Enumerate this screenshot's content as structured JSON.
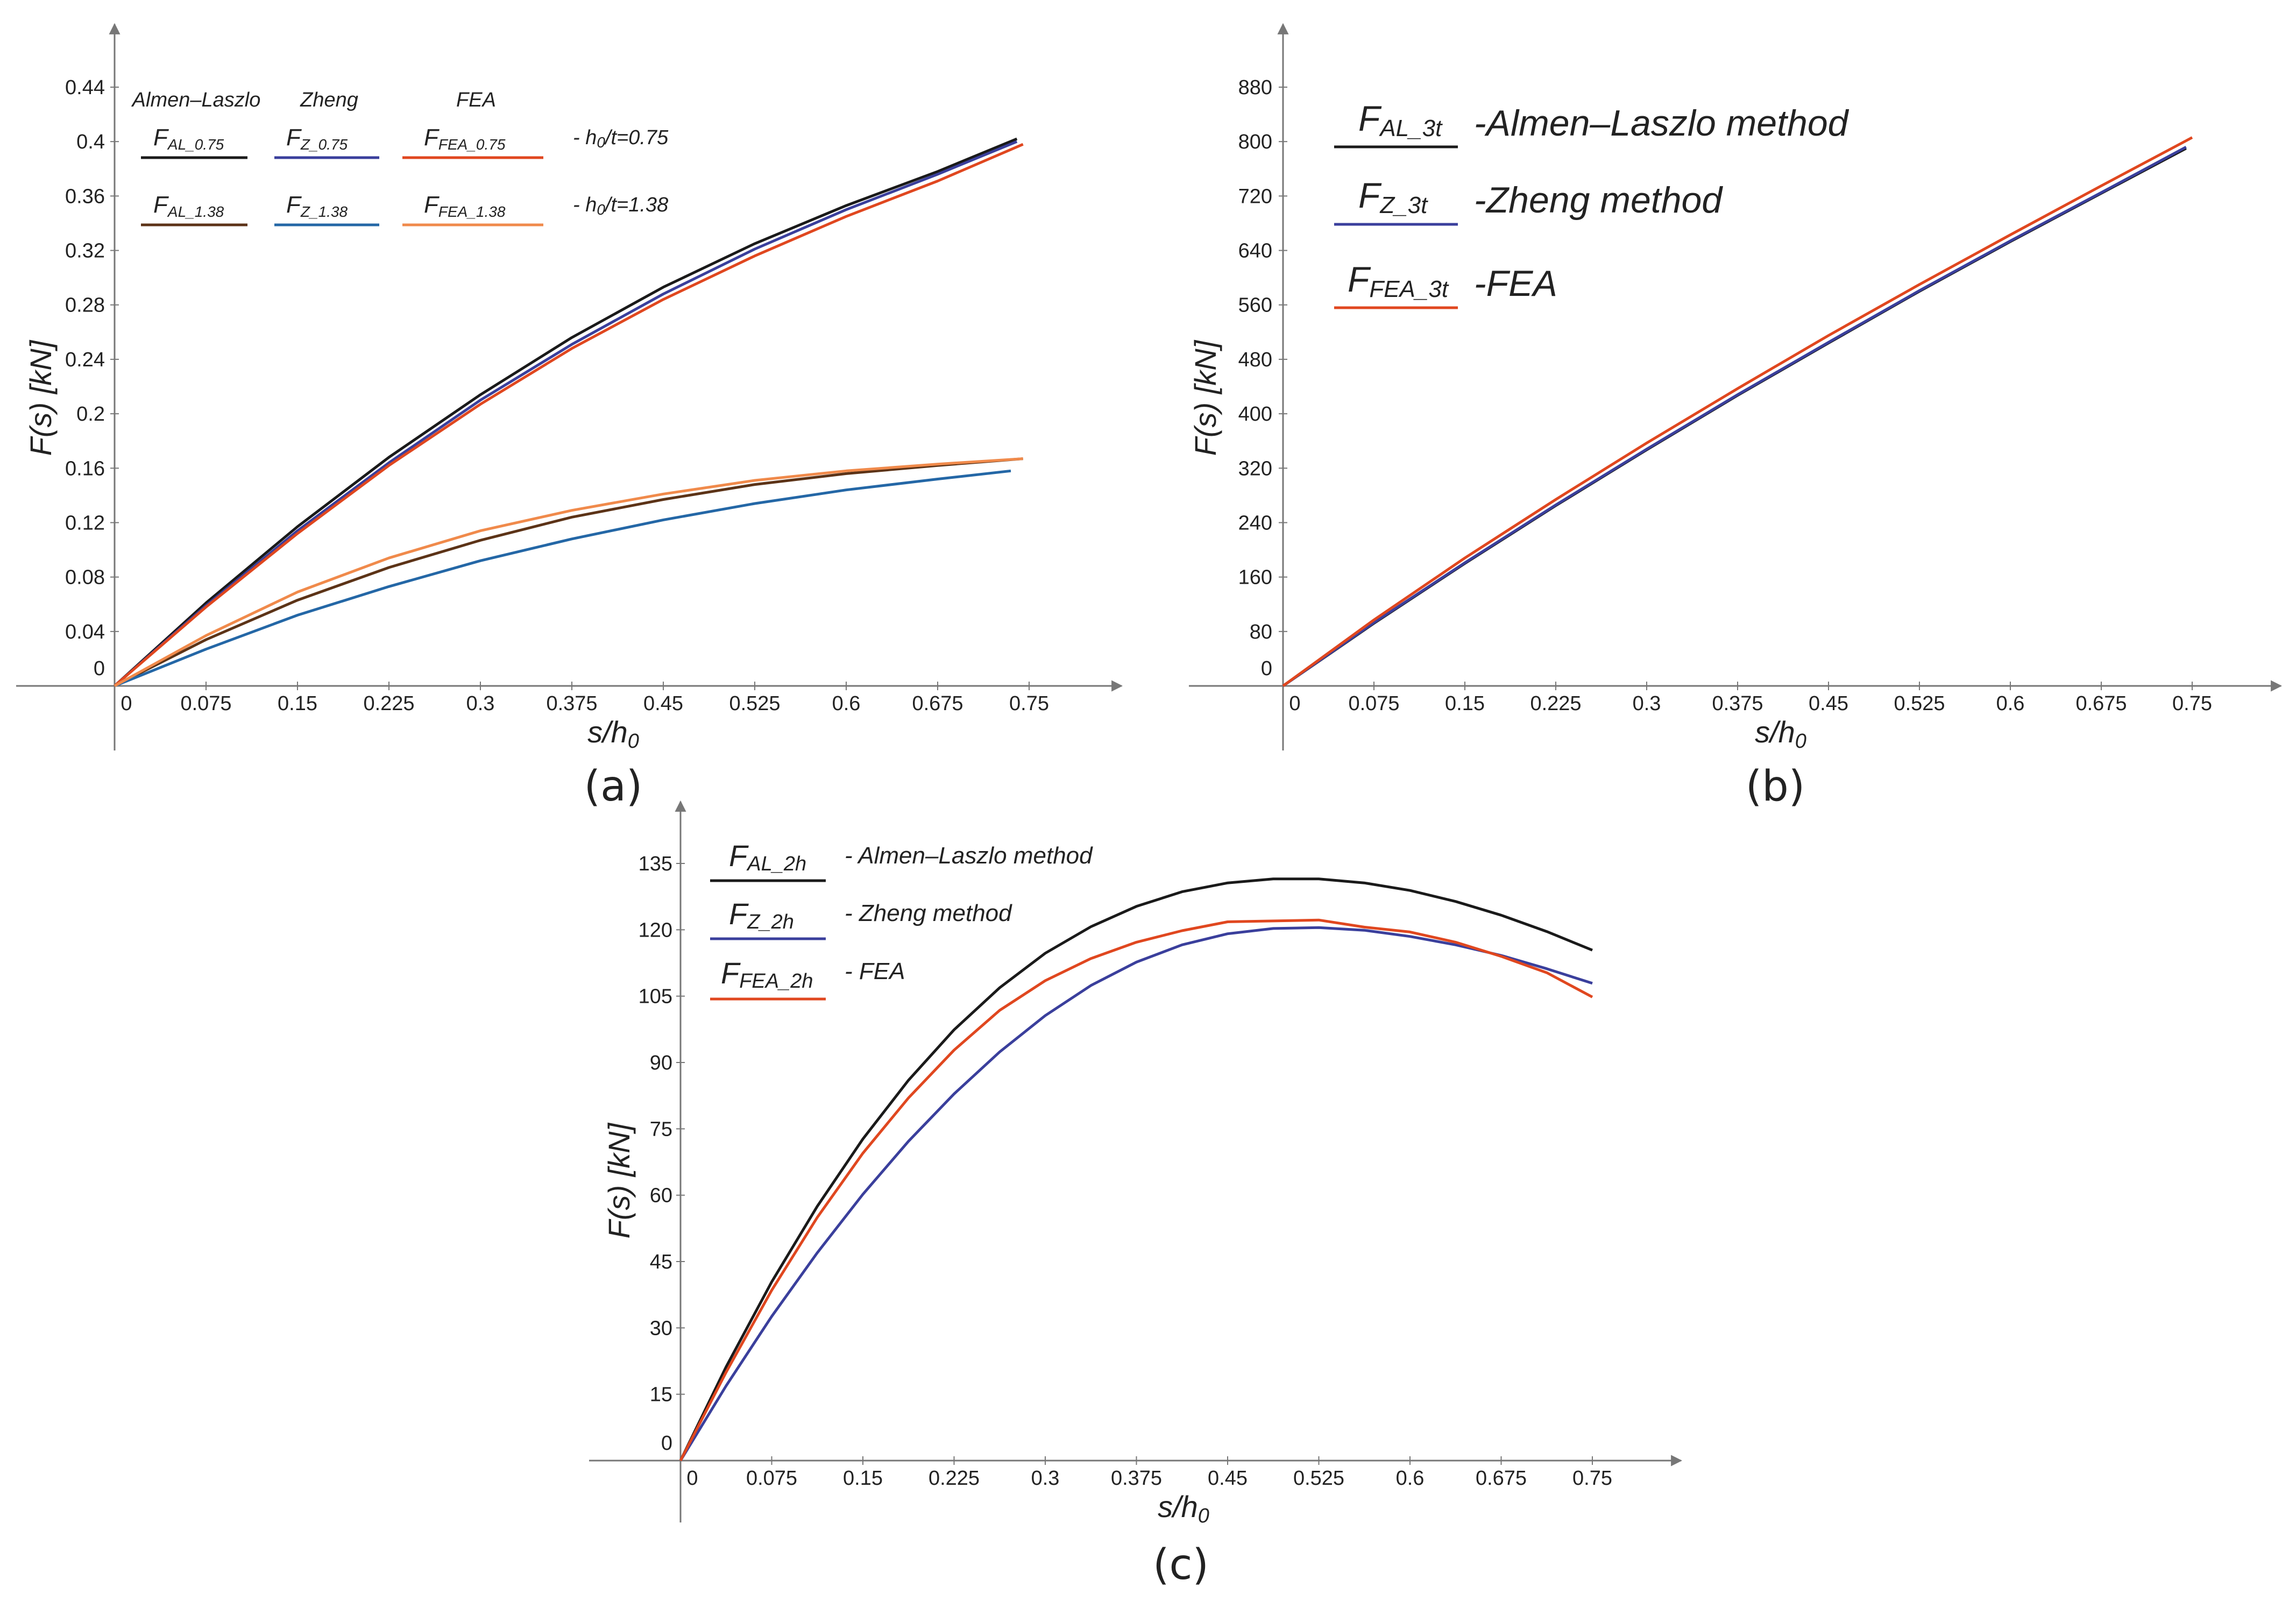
{
  "chart_data": [
    {
      "panel": "(a)",
      "type": "line",
      "xlabel": "s/h0",
      "ylabel": "F(s) [kN]",
      "xlim": [
        0,
        0.75
      ],
      "ylim": [
        0,
        0.44
      ],
      "xticks": [
        "0",
        "0.075",
        "0.15",
        "0.225",
        "0.3",
        "0.375",
        "0.45",
        "0.525",
        "0.6",
        "0.675",
        "0.75"
      ],
      "yticks": [
        "0",
        "0.04",
        "0.08",
        "0.12",
        "0.16",
        "0.2",
        "0.24",
        "0.28",
        "0.32",
        "0.36",
        "0.4",
        "0.44"
      ],
      "legend_headers": [
        "Almen–Laszlo",
        "Zheng",
        "FEA"
      ],
      "legend_rows": [
        {
          "desc": "- h0/t=0.75"
        },
        {
          "desc": "- h0/t=1.38"
        }
      ],
      "series": [
        {
          "name": "FAL_0.75",
          "color": "#1a1a1a",
          "x": [
            0,
            0.075,
            0.15,
            0.225,
            0.3,
            0.375,
            0.45,
            0.525,
            0.6,
            0.675,
            0.74
          ],
          "values": [
            0,
            0.061,
            0.117,
            0.168,
            0.214,
            0.256,
            0.293,
            0.325,
            0.353,
            0.378,
            0.402
          ]
        },
        {
          "name": "FZ_0.75",
          "color": "#3a3f9c",
          "x": [
            0,
            0.075,
            0.15,
            0.225,
            0.3,
            0.375,
            0.45,
            0.525,
            0.6,
            0.675,
            0.74
          ],
          "values": [
            0,
            0.059,
            0.114,
            0.164,
            0.21,
            0.251,
            0.288,
            0.321,
            0.35,
            0.376,
            0.4
          ]
        },
        {
          "name": "FFEA_0.75",
          "color": "#e0471f",
          "x": [
            0,
            0.075,
            0.15,
            0.225,
            0.3,
            0.375,
            0.45,
            0.525,
            0.6,
            0.675,
            0.745
          ],
          "values": [
            0,
            0.058,
            0.112,
            0.162,
            0.207,
            0.248,
            0.284,
            0.316,
            0.345,
            0.371,
            0.398
          ]
        },
        {
          "name": "FAL_1.38",
          "color": "#5c3317",
          "x": [
            0,
            0.075,
            0.15,
            0.225,
            0.3,
            0.375,
            0.45,
            0.525,
            0.6,
            0.675,
            0.745
          ],
          "values": [
            0,
            0.034,
            0.063,
            0.087,
            0.107,
            0.124,
            0.137,
            0.148,
            0.156,
            0.162,
            0.167
          ]
        },
        {
          "name": "FZ_1.38",
          "color": "#2467a6",
          "x": [
            0,
            0.075,
            0.15,
            0.225,
            0.3,
            0.375,
            0.45,
            0.525,
            0.6,
            0.675,
            0.735
          ],
          "values": [
            0,
            0.027,
            0.052,
            0.073,
            0.092,
            0.108,
            0.122,
            0.134,
            0.144,
            0.152,
            0.158
          ]
        },
        {
          "name": "FFEA_1.38",
          "color": "#f08a4b",
          "x": [
            0,
            0.075,
            0.15,
            0.225,
            0.3,
            0.375,
            0.45,
            0.525,
            0.6,
            0.675,
            0.745
          ],
          "values": [
            0,
            0.037,
            0.069,
            0.094,
            0.114,
            0.129,
            0.141,
            0.151,
            0.158,
            0.163,
            0.167
          ]
        }
      ]
    },
    {
      "panel": "(b)",
      "type": "line",
      "xlabel": "s/h0",
      "ylabel": "F(s) [kN]",
      "xlim": [
        0,
        0.75
      ],
      "ylim": [
        0,
        880
      ],
      "xticks": [
        "0",
        "0.075",
        "0.15",
        "0.225",
        "0.3",
        "0.375",
        "0.45",
        "0.525",
        "0.6",
        "0.675",
        "0.75"
      ],
      "yticks": [
        "0",
        "80",
        "160",
        "240",
        "320",
        "400",
        "480",
        "560",
        "640",
        "720",
        "800",
        "880"
      ],
      "series": [
        {
          "name": "FAL_3t",
          "desc": "-Almen–Laszlo method",
          "color": "#1a1a1a",
          "x": [
            0,
            0.075,
            0.15,
            0.225,
            0.3,
            0.375,
            0.45,
            0.525,
            0.6,
            0.675,
            0.745
          ],
          "values": [
            0,
            92,
            180,
            265,
            347,
            427,
            504,
            580,
            653,
            724,
            790
          ]
        },
        {
          "name": "FZ_3t",
          "desc": "-Zheng method",
          "color": "#3a3f9c",
          "x": [
            0,
            0.075,
            0.15,
            0.225,
            0.3,
            0.375,
            0.45,
            0.525,
            0.6,
            0.675,
            0.745
          ],
          "values": [
            0,
            93,
            181,
            266,
            348,
            428,
            505,
            581,
            654,
            725,
            792
          ]
        },
        {
          "name": "FFEA_3t",
          "desc": "-FEA",
          "color": "#e0471f",
          "x": [
            0,
            0.075,
            0.15,
            0.225,
            0.3,
            0.375,
            0.45,
            0.525,
            0.6,
            0.675,
            0.75
          ],
          "values": [
            0,
            97,
            188,
            274,
            357,
            437,
            515,
            590,
            663,
            735,
            806
          ]
        }
      ]
    },
    {
      "panel": "(c)",
      "type": "line",
      "xlabel": "s/h0",
      "ylabel": "F(s) [kN]",
      "xlim": [
        0,
        0.75
      ],
      "ylim": [
        0,
        135
      ],
      "xticks": [
        "0",
        "0.075",
        "0.15",
        "0.225",
        "0.3",
        "0.375",
        "0.45",
        "0.525",
        "0.6",
        "0.675",
        "0.75"
      ],
      "yticks": [
        "0",
        "15",
        "30",
        "45",
        "60",
        "75",
        "90",
        "105",
        "120",
        "135"
      ],
      "series": [
        {
          "name": "FAL_2h",
          "desc": "- Almen–Laszlo method",
          "color": "#1a1a1a",
          "x": [
            0,
            0.0375,
            0.075,
            0.1125,
            0.15,
            0.1875,
            0.225,
            0.2625,
            0.3,
            0.3375,
            0.375,
            0.4125,
            0.45,
            0.4875,
            0.525,
            0.5625,
            0.6,
            0.6375,
            0.675,
            0.7125,
            0.75
          ],
          "values": [
            0,
            21.2,
            40.4,
            57.5,
            72.7,
            86.0,
            97.4,
            106.9,
            114.7,
            120.7,
            125.3,
            128.6,
            130.6,
            131.5,
            131.5,
            130.6,
            128.9,
            126.4,
            123.3,
            119.6,
            115.4
          ]
        },
        {
          "name": "FZ_2h",
          "desc": "- Zheng method",
          "color": "#3a3f9c",
          "x": [
            0,
            0.0375,
            0.075,
            0.1125,
            0.15,
            0.1875,
            0.225,
            0.2625,
            0.3,
            0.3375,
            0.375,
            0.4125,
            0.45,
            0.4875,
            0.525,
            0.5625,
            0.6,
            0.6375,
            0.675,
            0.7125,
            0.75
          ],
          "values": [
            0,
            16.9,
            32.6,
            47.0,
            60.2,
            72.2,
            82.9,
            92.4,
            100.6,
            107.4,
            112.7,
            116.6,
            119.1,
            120.3,
            120.5,
            119.9,
            118.5,
            116.6,
            114.2,
            111.2,
            107.9
          ]
        },
        {
          "name": "FFEA_2h",
          "desc": "- FEA",
          "color": "#e0471f",
          "x": [
            0,
            0.0375,
            0.075,
            0.1125,
            0.15,
            0.1875,
            0.225,
            0.2625,
            0.3,
            0.3375,
            0.375,
            0.4125,
            0.45,
            0.4875,
            0.525,
            0.5625,
            0.6,
            0.6375,
            0.675,
            0.7125,
            0.75
          ],
          "values": [
            0,
            20.0,
            38.5,
            55.0,
            69.5,
            82.0,
            92.8,
            101.8,
            108.5,
            113.5,
            117.2,
            119.8,
            121.8,
            122.0,
            122.2,
            120.6,
            119.5,
            117.2,
            114.0,
            110.3,
            104.8
          ]
        }
      ]
    }
  ],
  "panel_labels": [
    "(a)",
    "(b)",
    "(c)"
  ],
  "legend_a": {
    "headers": [
      "Almen–Laszlo",
      "Zheng",
      "FEA"
    ],
    "row1": {
      "al_main": "F",
      "al_sub": "AL_0.75",
      "z_main": "F",
      "z_sub": "Z_0.75",
      "fea_main": "F",
      "fea_sub": "FEA_0.75",
      "desc_pre": "- h",
      "desc_sub": "0",
      "desc_post": "/t=0.75"
    },
    "row2": {
      "al_main": "F",
      "al_sub": "AL_1.38",
      "z_main": "F",
      "z_sub": "Z_1.38",
      "fea_main": "F",
      "fea_sub": "FEA_1.38",
      "desc_pre": "- h",
      "desc_sub": "0",
      "desc_post": "/t=1.38"
    }
  },
  "legend_b": [
    {
      "main": "F",
      "sub": "AL_3t",
      "desc": "-Almen–Laszlo method"
    },
    {
      "main": "F",
      "sub": "Z_3t",
      "desc": "-Zheng method"
    },
    {
      "main": "F",
      "sub": "FEA_3t",
      "desc": "-FEA"
    }
  ],
  "legend_c": [
    {
      "main": "F",
      "sub": "AL_2h",
      "desc": "- Almen–Laszlo method"
    },
    {
      "main": "F",
      "sub": "Z_2h",
      "desc": "- Zheng method"
    },
    {
      "main": "F",
      "sub": "FEA_2h",
      "desc": "- FEA"
    }
  ],
  "axis_labels": {
    "x_main": "s/h",
    "x_sub": "0",
    "y": "F(s) [kN]"
  }
}
